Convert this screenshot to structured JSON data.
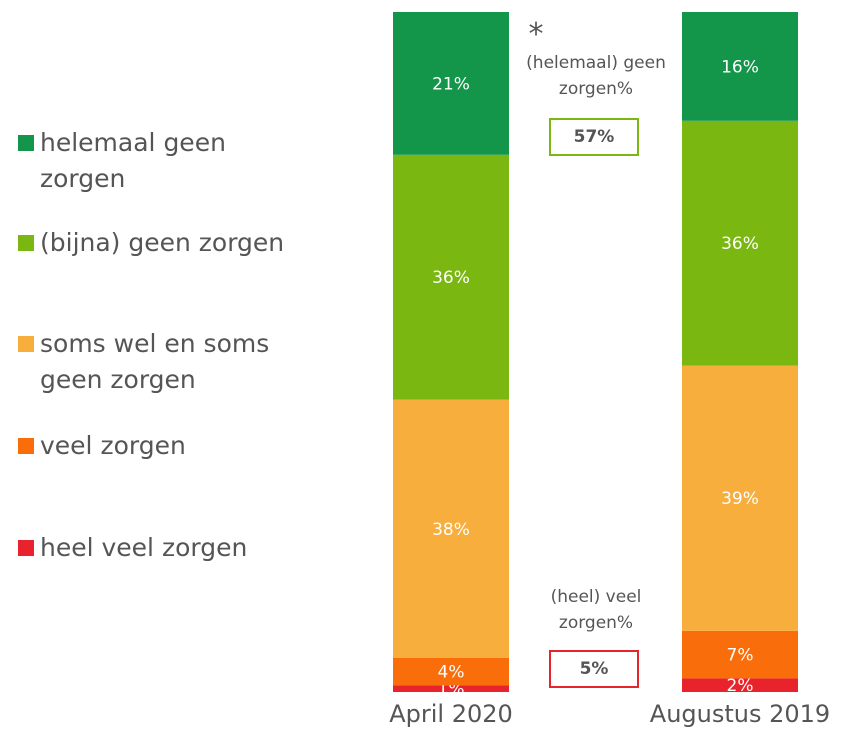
{
  "chart_data": {
    "type": "bar",
    "stacked": true,
    "categories": [
      "April 2020",
      "Augustus 2019"
    ],
    "ylim": [
      0,
      100
    ],
    "series": [
      {
        "name": "heel veel zorgen",
        "color": "#e8232b",
        "values": [
          1,
          2
        ],
        "value_labels": [
          "1%",
          "2%"
        ]
      },
      {
        "name": "veel zorgen",
        "color": "#f96d0b",
        "values": [
          4,
          7
        ],
        "value_labels": [
          "4%",
          "7%"
        ]
      },
      {
        "name": "soms wel en soms geen zorgen",
        "color": "#f8ae3c",
        "values": [
          38,
          39
        ],
        "value_labels": [
          "38%",
          "39%"
        ]
      },
      {
        "name": "(bijna) geen zorgen",
        "color": "#7ab811",
        "values": [
          36,
          36
        ],
        "value_labels": [
          "36%",
          "36%"
        ]
      },
      {
        "name": "helemaal geen zorgen",
        "color": "#13964a",
        "values": [
          21,
          16
        ],
        "value_labels": [
          "21%",
          "16%"
        ]
      }
    ],
    "annotations": {
      "asterisk": "*",
      "top_label": "(helemaal) geen zorgen%",
      "top_value": "57%",
      "bottom_label": "(heel) veel zorgen%",
      "bottom_value": "5%"
    }
  }
}
